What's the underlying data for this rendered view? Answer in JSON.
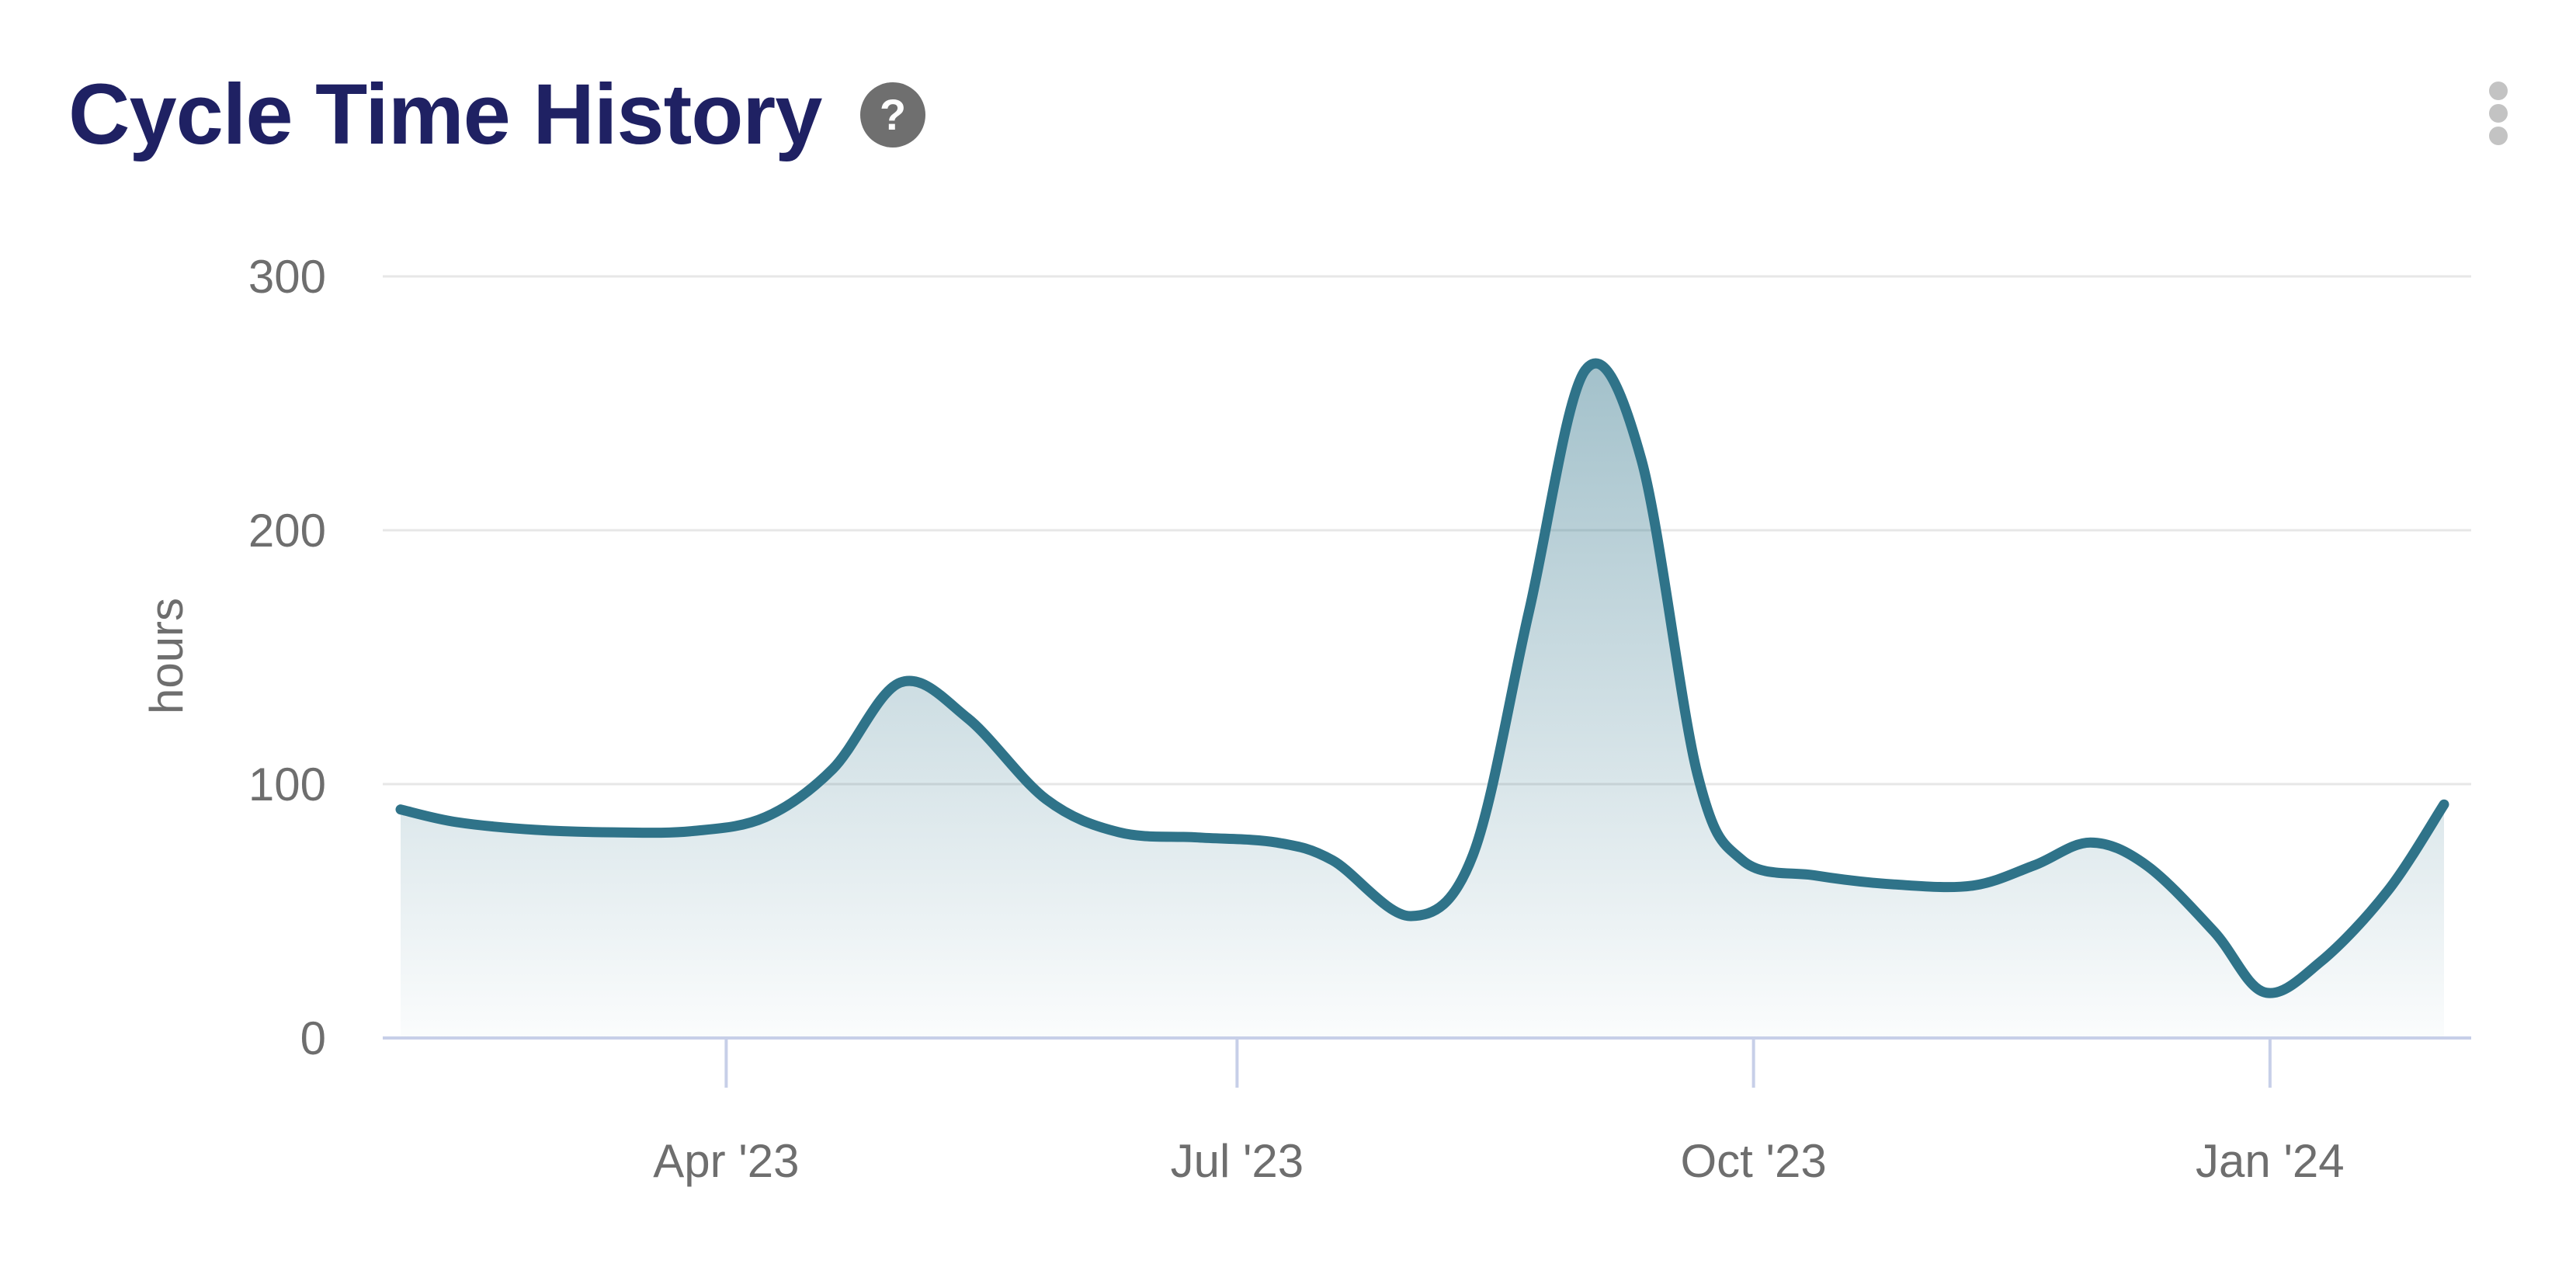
{
  "header": {
    "title": "Cycle Time History",
    "help_glyph": "?",
    "menu_icon": "kebab-vertical"
  },
  "chart_data": {
    "type": "area",
    "title": "Cycle Time History",
    "xlabel": "",
    "ylabel": "hours",
    "ylim": [
      0,
      300
    ],
    "y_ticks": [
      0,
      100,
      200,
      300
    ],
    "x_range": [
      "2023-02-02",
      "2024-02-01"
    ],
    "x_ticks": [
      {
        "date": "2023-04-01",
        "label": "Apr '23"
      },
      {
        "date": "2023-07-01",
        "label": "Jul '23"
      },
      {
        "date": "2023-10-01",
        "label": "Oct '23"
      },
      {
        "date": "2024-01-01",
        "label": "Jan '24"
      }
    ],
    "grid": "horizontal",
    "legend": "none",
    "series": [
      {
        "name": "Cycle Time",
        "unit": "hours",
        "points": [
          {
            "date": "2023-02-02",
            "value": 90
          },
          {
            "date": "2023-02-12",
            "value": 85
          },
          {
            "date": "2023-02-26",
            "value": 82
          },
          {
            "date": "2023-03-12",
            "value": 81
          },
          {
            "date": "2023-03-26",
            "value": 81.5
          },
          {
            "date": "2023-04-08",
            "value": 87
          },
          {
            "date": "2023-04-20",
            "value": 106
          },
          {
            "date": "2023-05-02",
            "value": 140
          },
          {
            "date": "2023-05-14",
            "value": 126
          },
          {
            "date": "2023-05-28",
            "value": 94
          },
          {
            "date": "2023-06-10",
            "value": 81
          },
          {
            "date": "2023-06-24",
            "value": 79
          },
          {
            "date": "2023-07-08",
            "value": 77
          },
          {
            "date": "2023-07-18",
            "value": 70
          },
          {
            "date": "2023-08-01",
            "value": 48
          },
          {
            "date": "2023-08-12",
            "value": 72
          },
          {
            "date": "2023-08-22",
            "value": 168
          },
          {
            "date": "2023-09-01",
            "value": 263
          },
          {
            "date": "2023-09-11",
            "value": 228
          },
          {
            "date": "2023-09-21",
            "value": 104
          },
          {
            "date": "2023-09-29",
            "value": 70
          },
          {
            "date": "2023-10-12",
            "value": 64
          },
          {
            "date": "2023-10-26",
            "value": 60.5
          },
          {
            "date": "2023-11-09",
            "value": 60
          },
          {
            "date": "2023-11-20",
            "value": 68
          },
          {
            "date": "2023-11-30",
            "value": 77
          },
          {
            "date": "2023-12-10",
            "value": 68
          },
          {
            "date": "2023-12-22",
            "value": 42
          },
          {
            "date": "2023-12-31",
            "value": 18
          },
          {
            "date": "2024-01-10",
            "value": 30
          },
          {
            "date": "2024-01-22",
            "value": 58
          },
          {
            "date": "2024-02-01",
            "value": 92
          }
        ]
      }
    ],
    "colors": {
      "line": "#2F7389",
      "area_fill": "#2F7389",
      "area_top_opacity": 0.5,
      "area_bottom_opacity": 0.02,
      "gridline": "#e7e7e7",
      "axis": "#c7cfe8",
      "tick_label": "#6e6e6e",
      "title": "#1f2163",
      "help_icon_bg": "#6f6f6f",
      "menu_dots": "#c3c3c3"
    }
  }
}
